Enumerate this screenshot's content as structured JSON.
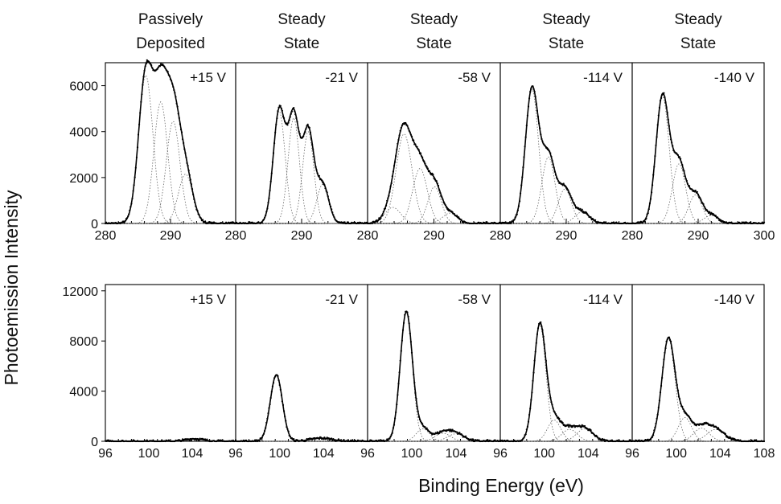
{
  "chart_data": [
    {
      "type": "line",
      "ylabel": "Photoemission Intensity",
      "xlabel": "Binding Energy (eV)",
      "column_titles": [
        [
          "Passively",
          "Deposited"
        ],
        [
          "Steady",
          "State"
        ],
        [
          "Steady",
          "State"
        ],
        [
          "Steady",
          "State"
        ],
        [
          "Steady",
          "State"
        ]
      ],
      "ylim": [
        0,
        7000
      ],
      "yticks": [
        0,
        2000,
        4000,
        6000
      ],
      "xlim": [
        280,
        300
      ],
      "xticks": [
        280,
        290,
        300
      ],
      "xtick_labels": [
        "280",
        "290",
        "280",
        "290",
        "280",
        "290",
        "280",
        "290",
        "280",
        "290",
        "300"
      ],
      "panels": [
        {
          "label": "+15 V",
          "peaks": [
            {
              "center": 286.2,
              "height": 6450,
              "width": 1.1
            },
            {
              "center": 288.5,
              "height": 5300,
              "width": 1.05
            },
            {
              "center": 290.4,
              "height": 4450,
              "width": 1.05
            },
            {
              "center": 292.3,
              "height": 2150,
              "width": 1.1
            }
          ]
        },
        {
          "label": "-21 V",
          "peaks": [
            {
              "center": 286.6,
              "height": 4900,
              "width": 0.9
            },
            {
              "center": 288.8,
              "height": 4600,
              "width": 0.85
            },
            {
              "center": 291.0,
              "height": 4000,
              "width": 0.85
            },
            {
              "center": 293.2,
              "height": 1700,
              "width": 0.9
            }
          ]
        },
        {
          "label": "-58 V",
          "peaks": [
            {
              "center": 283.8,
              "height": 700,
              "width": 1.2
            },
            {
              "center": 285.5,
              "height": 3900,
              "width": 1.2
            },
            {
              "center": 287.9,
              "height": 2400,
              "width": 1.1
            },
            {
              "center": 290.1,
              "height": 1600,
              "width": 1.0
            },
            {
              "center": 292.4,
              "height": 450,
              "width": 1.1
            }
          ]
        },
        {
          "label": "-114 V",
          "peaks": [
            {
              "center": 284.8,
              "height": 5850,
              "width": 1.0
            },
            {
              "center": 287.3,
              "height": 2900,
              "width": 1.0
            },
            {
              "center": 289.8,
              "height": 1500,
              "width": 1.0
            },
            {
              "center": 292.4,
              "height": 500,
              "width": 1.1
            }
          ]
        },
        {
          "label": "-140 V",
          "peaks": [
            {
              "center": 284.6,
              "height": 5550,
              "width": 1.0
            },
            {
              "center": 287.1,
              "height": 2600,
              "width": 1.0
            },
            {
              "center": 289.6,
              "height": 1250,
              "width": 1.0
            },
            {
              "center": 292.0,
              "height": 350,
              "width": 1.1
            }
          ]
        }
      ]
    },
    {
      "type": "line",
      "ylabel": "Photoemission Intensity",
      "xlabel": "Binding Energy (eV)",
      "ylim": [
        0,
        12500
      ],
      "yticks": [
        0,
        4000,
        8000,
        12000
      ],
      "xlim": [
        96,
        108
      ],
      "xticks": [
        96,
        100,
        104,
        108
      ],
      "xtick_labels": [
        "96",
        "100",
        "104",
        "96",
        "100",
        "104",
        "96",
        "100",
        "104",
        "96",
        "100",
        "104",
        "96",
        "100",
        "104",
        "108"
      ],
      "panels": [
        {
          "label": "+15 V",
          "peaks": [
            {
              "center": 104.2,
              "height": 200,
              "width": 0.8
            }
          ]
        },
        {
          "label": "-21 V",
          "peaks": [
            {
              "center": 99.7,
              "height": 5300,
              "width": 0.55
            },
            {
              "center": 103.8,
              "height": 250,
              "width": 1.0
            }
          ]
        },
        {
          "label": "-58 V",
          "peaks": [
            {
              "center": 99.5,
              "height": 10300,
              "width": 0.55
            },
            {
              "center": 101.0,
              "height": 1000,
              "width": 0.6
            },
            {
              "center": 102.8,
              "height": 650,
              "width": 0.7
            },
            {
              "center": 104.0,
              "height": 600,
              "width": 0.75
            }
          ]
        },
        {
          "label": "-114 V",
          "peaks": [
            {
              "center": 99.6,
              "height": 9300,
              "width": 0.55
            },
            {
              "center": 100.9,
              "height": 1700,
              "width": 0.6
            },
            {
              "center": 102.3,
              "height": 950,
              "width": 0.7
            },
            {
              "center": 103.7,
              "height": 1000,
              "width": 0.75
            }
          ]
        },
        {
          "label": "-140 V",
          "peaks": [
            {
              "center": 99.3,
              "height": 8200,
              "width": 0.6
            },
            {
              "center": 100.8,
              "height": 1900,
              "width": 0.6
            },
            {
              "center": 102.3,
              "height": 1050,
              "width": 0.7
            },
            {
              "center": 103.6,
              "height": 950,
              "width": 0.8
            }
          ]
        }
      ]
    }
  ]
}
